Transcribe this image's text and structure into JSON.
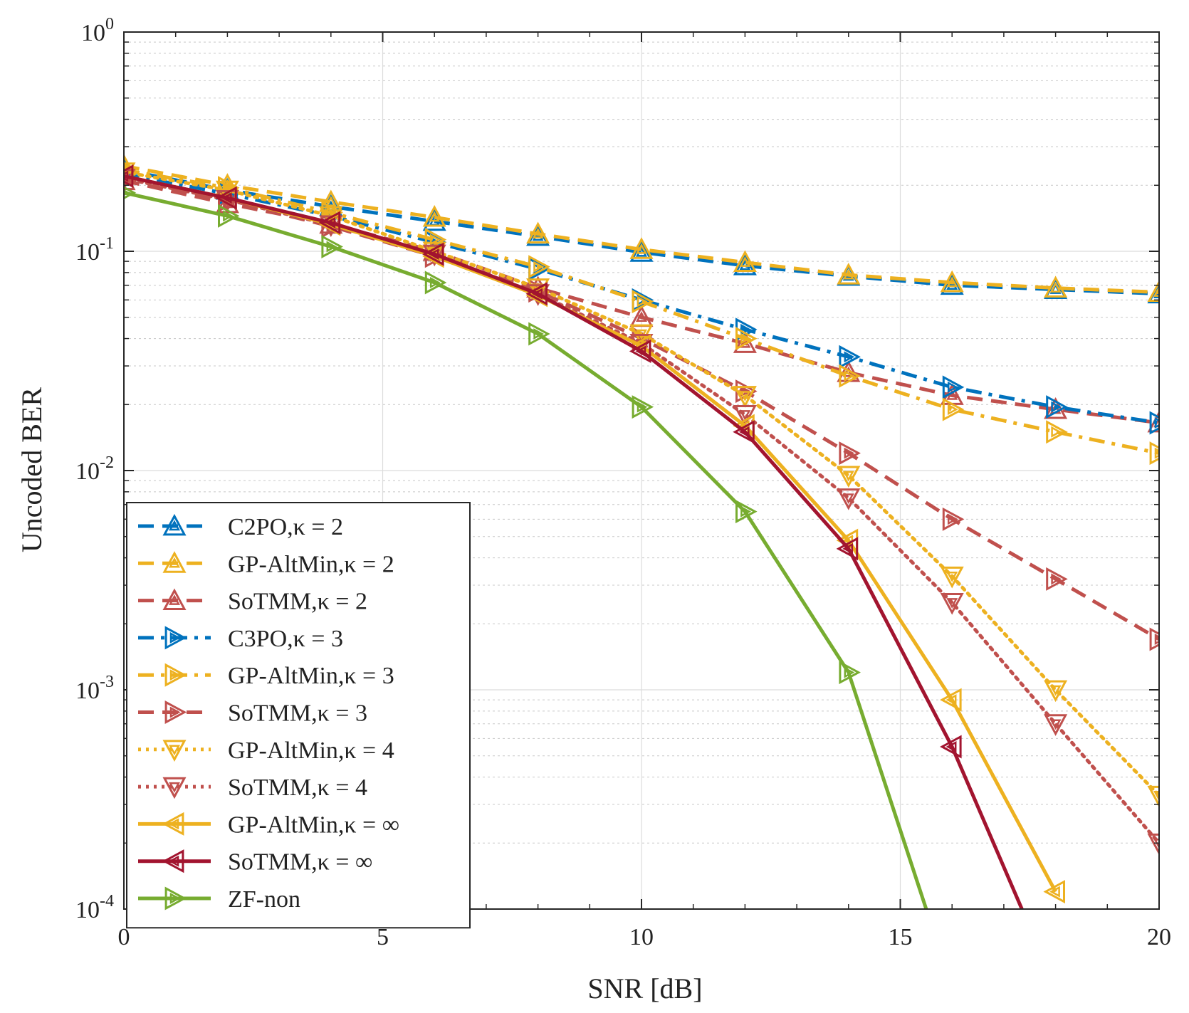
{
  "chart_data": {
    "type": "line",
    "xlabel": "SNR [dB]",
    "ylabel": "Uncoded BER",
    "xlim": [
      0,
      20
    ],
    "ylim": [
      0.0001,
      1
    ],
    "y_scale": "log",
    "grid": true,
    "legend_position": "bottom-left",
    "x_ticks": [
      "0",
      "5",
      "10",
      "15",
      "20"
    ],
    "y_ticks": [
      {
        "base": "10",
        "exp": "0"
      },
      {
        "base": "10",
        "exp": "-1"
      },
      {
        "base": "10",
        "exp": "-2"
      },
      {
        "base": "10",
        "exp": "-3"
      },
      {
        "base": "10",
        "exp": "-4"
      }
    ],
    "series": [
      {
        "name": "C2PO,κ = 2",
        "color": "#0072BD",
        "dash": "dashed",
        "marker": "triangle-up",
        "x": [
          0,
          2,
          4,
          6,
          8,
          10,
          12,
          14,
          16,
          18,
          20
        ],
        "y": [
          0.235,
          0.19,
          0.16,
          0.137,
          0.117,
          0.099,
          0.086,
          0.077,
          0.07,
          0.067,
          0.064
        ]
      },
      {
        "name": "GP-AltMin,κ = 2",
        "color": "#EDB120",
        "dash": "dashed",
        "marker": "triangle-up",
        "x": [
          0,
          2,
          4,
          6,
          8,
          10,
          12,
          14,
          16,
          18,
          20
        ],
        "y": [
          0.245,
          0.2,
          0.168,
          0.143,
          0.12,
          0.102,
          0.089,
          0.078,
          0.072,
          0.068,
          0.065
        ]
      },
      {
        "name": "SoTMM,κ = 2",
        "color": "#C0504D",
        "dash": "dashed",
        "marker": "triangle-up",
        "x": [
          0,
          2,
          4,
          6,
          8,
          10,
          12,
          14,
          16,
          18,
          20
        ],
        "y": [
          0.21,
          0.165,
          0.133,
          0.1,
          0.068,
          0.05,
          0.038,
          0.028,
          0.022,
          0.019,
          0.0165
        ]
      },
      {
        "name": "C3PO,κ = 3",
        "color": "#0072BD",
        "dash": "dashdot",
        "marker": "triangle-right",
        "x": [
          0,
          2,
          4,
          6,
          8,
          10,
          12,
          14,
          16,
          18,
          20
        ],
        "y": [
          0.225,
          0.183,
          0.145,
          0.11,
          0.083,
          0.06,
          0.044,
          0.033,
          0.024,
          0.0195,
          0.0165
        ]
      },
      {
        "name": "GP-AltMin,κ = 3",
        "color": "#EDB120",
        "dash": "dashdot",
        "marker": "triangle-right",
        "x": [
          0,
          2,
          4,
          6,
          8,
          10,
          12,
          14,
          16,
          18,
          20
        ],
        "y": [
          0.235,
          0.195,
          0.15,
          0.113,
          0.085,
          0.059,
          0.04,
          0.027,
          0.019,
          0.015,
          0.012
        ]
      },
      {
        "name": "SoTMM,κ = 3",
        "color": "#C0504D",
        "dash": "dashed",
        "marker": "triangle-right",
        "x": [
          0,
          2,
          4,
          6,
          8,
          10,
          12,
          14,
          16,
          18,
          20
        ],
        "y": [
          0.21,
          0.17,
          0.13,
          0.095,
          0.066,
          0.04,
          0.023,
          0.012,
          0.006,
          0.0032,
          0.0017
        ]
      },
      {
        "name": "GP-AltMin,κ = 4",
        "color": "#EDB120",
        "dash": "dotted",
        "marker": "triangle-down",
        "x": [
          0,
          2,
          4,
          6,
          8,
          10,
          12,
          14,
          16,
          18,
          20
        ],
        "y": [
          0.23,
          0.19,
          0.145,
          0.1,
          0.068,
          0.042,
          0.022,
          0.0095,
          0.0033,
          0.001,
          0.00033
        ]
      },
      {
        "name": "SoTMM,κ = 4",
        "color": "#C0504D",
        "dash": "dotted",
        "marker": "triangle-down",
        "x": [
          0,
          2,
          4,
          6,
          8,
          10,
          12,
          14,
          16,
          18,
          20
        ],
        "y": [
          0.215,
          0.172,
          0.132,
          0.097,
          0.064,
          0.038,
          0.018,
          0.0075,
          0.0025,
          0.0007,
          0.0002
        ]
      },
      {
        "name": "GP-AltMin,κ = ∞",
        "color": "#EDB120",
        "dash": "solid",
        "marker": "triangle-left",
        "x": [
          0,
          2,
          4,
          6,
          8,
          10,
          12,
          14,
          16,
          18
        ],
        "y": [
          0.22,
          0.175,
          0.133,
          0.095,
          0.063,
          0.037,
          0.016,
          0.0048,
          0.0009,
          0.00012
        ]
      },
      {
        "name": "SoTMM,κ = ∞",
        "color": "#A2142F",
        "dash": "solid",
        "marker": "triangle-left",
        "x": [
          0,
          2,
          4,
          6,
          8,
          10,
          12,
          14,
          16,
          17.35
        ],
        "y": [
          0.22,
          0.175,
          0.135,
          0.097,
          0.064,
          0.035,
          0.015,
          0.0044,
          0.00055,
          0.0001
        ]
      },
      {
        "name": "ZF-non",
        "color": "#77AC30",
        "dash": "solid",
        "marker": "triangle-right",
        "x": [
          0,
          2,
          4,
          6,
          8,
          10,
          12,
          14,
          15.5
        ],
        "y": [
          0.185,
          0.145,
          0.105,
          0.072,
          0.042,
          0.0195,
          0.0065,
          0.0012,
          0.0001
        ]
      }
    ]
  }
}
